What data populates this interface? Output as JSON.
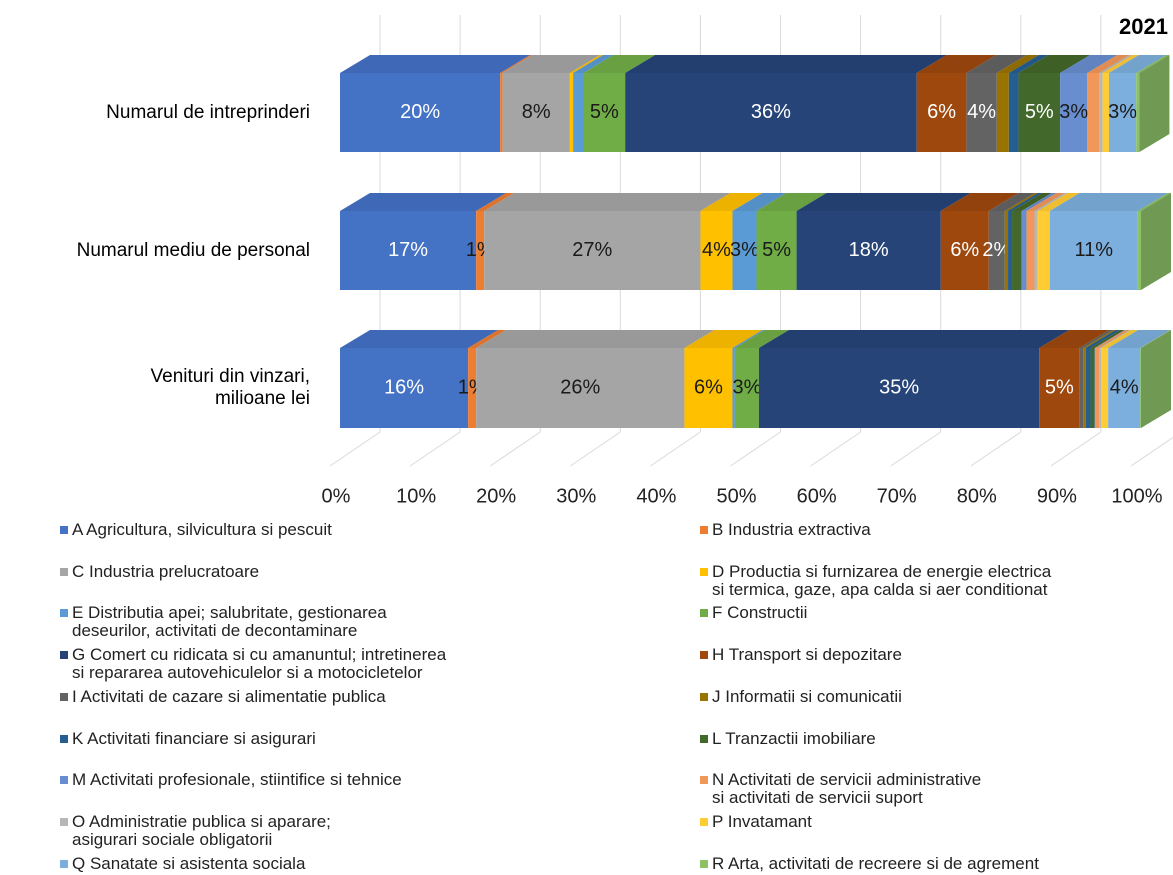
{
  "chart_data": {
    "type": "bar3d_stacked_horizontal",
    "title": "2021",
    "categories": [
      "Numarul de intreprinderi",
      "Numarul mediu de personal",
      "Venituri din vinzari,\nmilioane lei"
    ],
    "xlim": [
      0,
      100
    ],
    "xticks": [
      {
        "value": 0,
        "label": "0%"
      },
      {
        "value": 10,
        "label": "10%"
      },
      {
        "value": 20,
        "label": "20%"
      },
      {
        "value": 30,
        "label": "30%"
      },
      {
        "value": 40,
        "label": "40%"
      },
      {
        "value": 50,
        "label": "50%"
      },
      {
        "value": 60,
        "label": "60%"
      },
      {
        "value": 70,
        "label": "70%"
      },
      {
        "value": 80,
        "label": "80%"
      },
      {
        "value": 90,
        "label": "90%"
      },
      {
        "value": 100,
        "label": "100%"
      }
    ],
    "grid": true,
    "series": [
      {
        "name": "A  Agricultura, silvicultura si pescuit",
        "color": "#4472c4",
        "values": [
          20,
          17,
          16
        ],
        "value_labels": [
          "20%",
          "17%",
          "16%"
        ]
      },
      {
        "name": "B Industria extractiva",
        "color": "#ed7d31",
        "values": [
          0.3,
          1,
          1
        ],
        "value_labels": [
          null,
          "1%",
          "1%"
        ]
      },
      {
        "name": "C Industria prelucratoare",
        "color": "#a5a5a5",
        "values": [
          8.4,
          27,
          26
        ],
        "value_labels": [
          "8%",
          "27%",
          "26%"
        ]
      },
      {
        "name": "D Productia si furnizarea de energie electrica\nsi termica, gaze, apa calda si aer conditionat",
        "color": "#ffc000",
        "values": [
          0.4,
          4,
          6
        ],
        "value_labels": [
          null,
          "4%",
          "6%"
        ]
      },
      {
        "name": "E Distributia apei; salubritate, gestionarea\ndeseurilor, activitati de decontaminare",
        "color": "#5b9bd5",
        "values": [
          1.3,
          3,
          0.3
        ],
        "value_labels": [
          null,
          "3%",
          null
        ]
      },
      {
        "name": "F Constructii",
        "color": "#70ad47",
        "values": [
          5.2,
          5,
          3
        ],
        "value_labels": [
          "5%",
          "5%",
          "3%"
        ]
      },
      {
        "name": "G Comert cu ridicata si cu amanuntul; intretinerea\nsi repararea autovehiculelor si a motocicletelor",
        "color": "#264478",
        "values": [
          36.4,
          18,
          35
        ],
        "value_labels": [
          "36%",
          "18%",
          "35%"
        ]
      },
      {
        "name": "H Transport si depozitare",
        "color": "#9e480e",
        "values": [
          6.2,
          6,
          5
        ],
        "value_labels": [
          "6%",
          "6%",
          "5%"
        ]
      },
      {
        "name": "I Activitati de cazare si alimentatie publica",
        "color": "#636363",
        "values": [
          3.8,
          2,
          0.5
        ],
        "value_labels": [
          "4%",
          "2%",
          null
        ]
      },
      {
        "name": "J Informatii si comunicatii",
        "color": "#997300",
        "values": [
          1.5,
          0.4,
          0.3
        ],
        "value_labels": [
          null,
          null,
          null
        ]
      },
      {
        "name": "K Activitati financiare si asigurari",
        "color": "#255e91",
        "values": [
          1.2,
          0.5,
          0.6
        ],
        "value_labels": [
          null,
          null,
          null
        ]
      },
      {
        "name": "L Tranzactii imobiliare",
        "color": "#43682b",
        "values": [
          5.2,
          1.2,
          0.5
        ],
        "value_labels": [
          "5%",
          null,
          null
        ]
      },
      {
        "name": "M Activitati profesionale, stiintifice si tehnice",
        "color": "#698ed0",
        "values": [
          3.4,
          0.6,
          0.1
        ],
        "value_labels": [
          "3%",
          null,
          null
        ]
      },
      {
        "name": "N Activitati de servicii administrative\nsi activitati de servicii suport",
        "color": "#f1975a",
        "values": [
          1.5,
          1,
          0.5
        ],
        "value_labels": [
          null,
          null,
          null
        ]
      },
      {
        "name": "O Administratie publica si aparare;\nasigurari sociale obligatorii",
        "color": "#b7b7b7",
        "values": [
          0.4,
          0.4,
          0.2
        ],
        "value_labels": [
          null,
          null,
          null
        ]
      },
      {
        "name": "P Invatamant",
        "color": "#ffcd33",
        "values": [
          0.8,
          1.5,
          0.9
        ],
        "value_labels": [
          null,
          null,
          null
        ]
      },
      {
        "name": "Q Sanatate si asistenta sociala",
        "color": "#7cafdd",
        "values": [
          3.4,
          11,
          4
        ],
        "value_labels": [
          "3%",
          "11%",
          "4%"
        ]
      },
      {
        "name": "R Arta, activitati de recreere si de agrement",
        "color": "#8cc168",
        "values": [
          0.4,
          0.4,
          0.1
        ],
        "value_labels": [
          null,
          null,
          null
        ]
      }
    ]
  }
}
